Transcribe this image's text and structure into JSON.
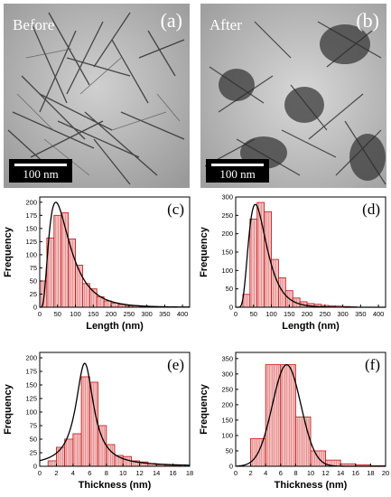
{
  "micrographs": [
    {
      "label": "Before",
      "panel": "(a)",
      "scale": "100 nm"
    },
    {
      "label": "After",
      "panel": "(b)",
      "scale": "100 nm"
    }
  ],
  "chart_data": [
    {
      "panel": "(c)",
      "type": "bar",
      "xlabel": "Length (nm)",
      "ylabel": "Frequency",
      "xlim": [
        0,
        420
      ],
      "ylim": [
        0,
        210
      ],
      "bin_width": 20,
      "xticks": [
        0,
        50,
        100,
        150,
        200,
        250,
        300,
        350,
        400
      ],
      "yticks": [
        0,
        25,
        50,
        75,
        100,
        125,
        150,
        175,
        200
      ],
      "bins": [
        0,
        20,
        40,
        60,
        80,
        100,
        120,
        140,
        160,
        180,
        200,
        220,
        240,
        260,
        280,
        300
      ],
      "values": [
        50,
        132,
        175,
        180,
        130,
        80,
        45,
        35,
        20,
        12,
        8,
        5,
        3,
        3,
        2,
        1
      ],
      "fit": {
        "type": "lognormal",
        "peak_x": 45,
        "peak_y": 200,
        "sigma": 0.62
      }
    },
    {
      "panel": "(d)",
      "type": "bar",
      "xlabel": "Length (nm)",
      "ylabel": "Frequency",
      "xlim": [
        0,
        420
      ],
      "ylim": [
        0,
        300
      ],
      "bin_width": 20,
      "xticks": [
        0,
        50,
        100,
        150,
        200,
        250,
        300,
        350,
        400
      ],
      "yticks": [
        0,
        50,
        100,
        150,
        200,
        250,
        300
      ],
      "bins": [
        20,
        40,
        60,
        80,
        100,
        120,
        140,
        160,
        180,
        200,
        220,
        240,
        260,
        280,
        300,
        320
      ],
      "values": [
        35,
        240,
        285,
        260,
        130,
        80,
        45,
        25,
        15,
        10,
        8,
        5,
        4,
        3,
        2,
        1
      ],
      "fit": {
        "type": "lognormal",
        "peak_x": 55,
        "peak_y": 280,
        "sigma": 0.45
      }
    },
    {
      "panel": "(e)",
      "type": "bar",
      "xlabel": "Thickness (nm)",
      "ylabel": "Frequency",
      "xlim": [
        0,
        18
      ],
      "ylim": [
        0,
        210
      ],
      "bin_width": 1,
      "xticks": [
        0,
        2,
        4,
        6,
        8,
        10,
        12,
        14,
        16,
        18
      ],
      "yticks": [
        0,
        25,
        50,
        75,
        100,
        125,
        150,
        175,
        200
      ],
      "bins": [
        1,
        2,
        3,
        4,
        5,
        6,
        7,
        8,
        9,
        10,
        11,
        12,
        13,
        14,
        15,
        16
      ],
      "values": [
        10,
        35,
        50,
        60,
        165,
        155,
        75,
        40,
        20,
        18,
        10,
        8,
        5,
        3,
        2,
        1
      ],
      "fit": {
        "type": "lorentzian",
        "peak_x": 5.4,
        "peak_y": 190,
        "hwhm": 1.3
      }
    },
    {
      "panel": "(f)",
      "type": "bar",
      "xlabel": "Thickness (nm)",
      "ylabel": "Frequency",
      "xlim": [
        0,
        20
      ],
      "ylim": [
        0,
        370
      ],
      "bin_width": 2,
      "xticks": [
        0,
        2,
        4,
        6,
        8,
        10,
        12,
        14,
        16,
        18,
        20
      ],
      "yticks": [
        0,
        50,
        100,
        150,
        200,
        250,
        300,
        350
      ],
      "bins": [
        2,
        4,
        6,
        8,
        10,
        12,
        14,
        16,
        18
      ],
      "values": [
        90,
        330,
        330,
        160,
        50,
        20,
        8,
        5,
        2
      ],
      "fit": {
        "type": "gaussian",
        "peak_x": 6.8,
        "peak_y": 330,
        "sigma": 1.9
      }
    }
  ]
}
